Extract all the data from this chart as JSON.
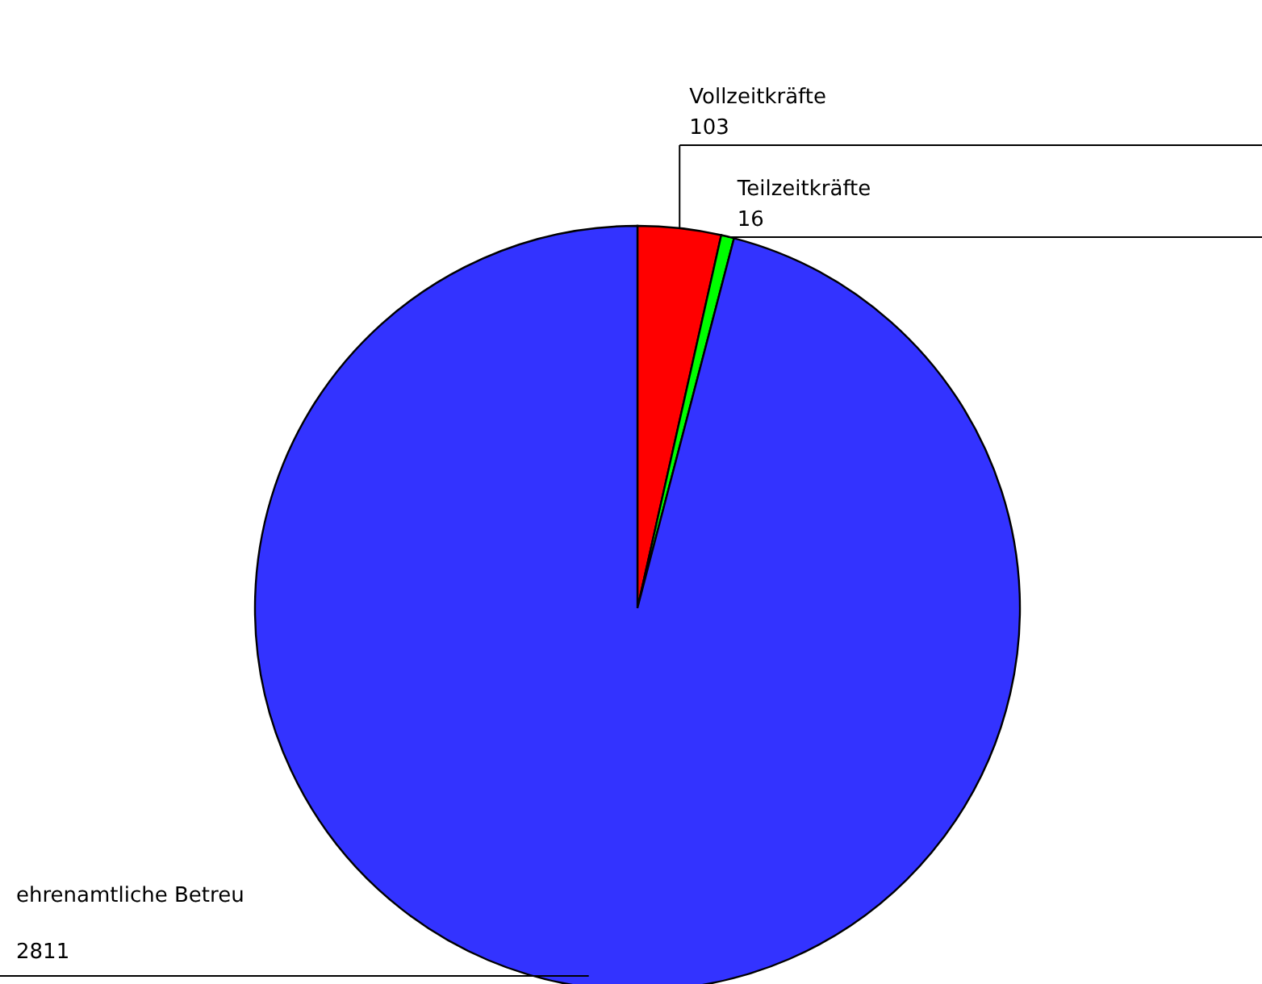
{
  "chart_data": {
    "type": "pie",
    "categories": [
      "Vollzeitkräfte",
      "Teilzeitkräfte",
      "ehrenamtliche Betreu"
    ],
    "values": [
      103,
      16,
      2811
    ],
    "colors": [
      "#ff0000",
      "#00ff00",
      "#3333ff"
    ],
    "data_labels": true
  }
}
